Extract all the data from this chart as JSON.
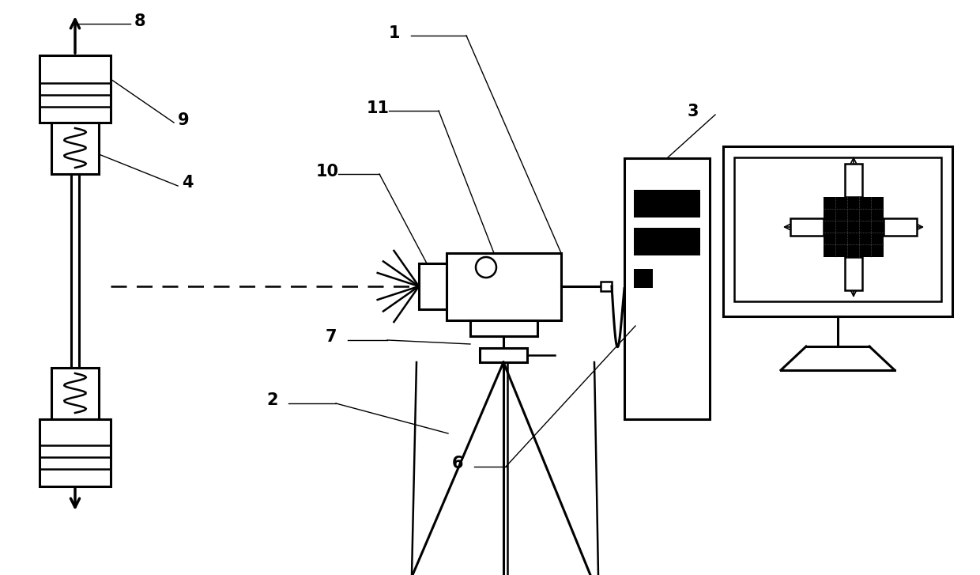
{
  "bg_color": "#ffffff",
  "line_color": "#000000",
  "label_color": "#000000",
  "label_fontsize": 15,
  "figsize": [
    12.4,
    7.27
  ],
  "dpi": 100
}
